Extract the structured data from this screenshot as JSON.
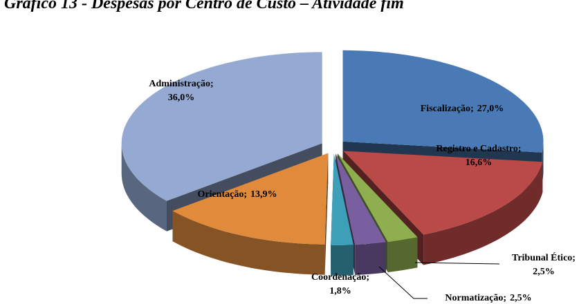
{
  "chart_data": {
    "type": "pie",
    "title": "Gráfico 13 - Despesas por Centro de Custo – Atividade fim",
    "categories": [
      "Fiscalização",
      "Registro e Cadastro",
      "Tribunal Ético",
      "Normatização",
      "Coordenação",
      "Orientação",
      "Administração"
    ],
    "values": [
      27.0,
      16.6,
      2.5,
      2.5,
      1.8,
      13.9,
      36.0
    ],
    "value_labels": [
      "27,0%",
      "16,6%",
      "2,5%",
      "2,5%",
      "1,8%",
      "13,9%",
      "36,0%"
    ],
    "label_separator": ";",
    "colors": [
      "#4a7ab5",
      "#b94a48",
      "#8fae4f",
      "#7a5fa0",
      "#3ea0b8",
      "#e08a3c",
      "#95aad3"
    ]
  }
}
